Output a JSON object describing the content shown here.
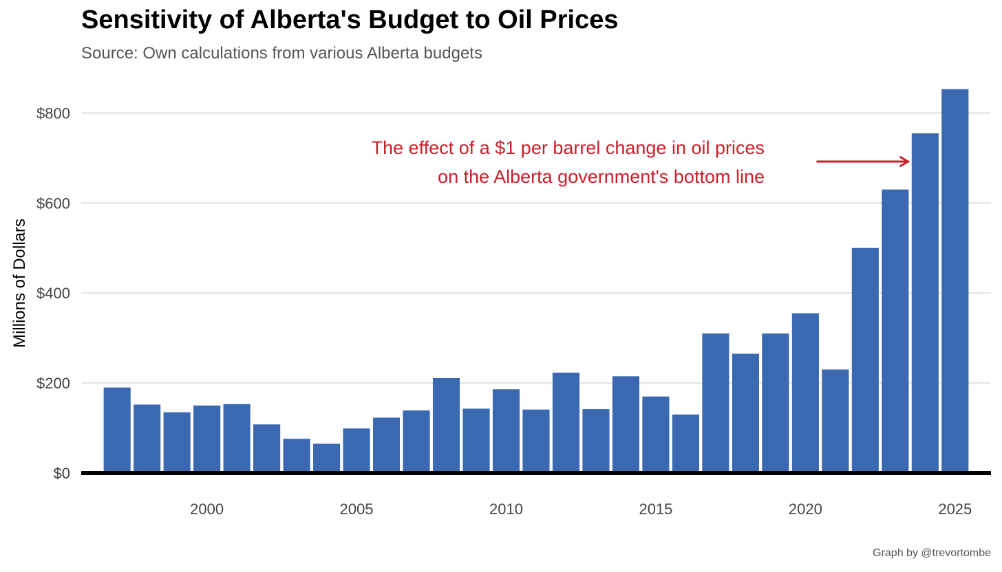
{
  "chart_data": {
    "type": "bar",
    "title": "Sensitivity of Alberta's Budget to Oil Prices",
    "subtitle": "Source: Own calculations from various Alberta budgets",
    "ylabel": "Millions of Dollars",
    "xlabel": "",
    "ylim": [
      0,
      880
    ],
    "yticks": [
      0,
      200,
      400,
      600,
      800
    ],
    "ytick_labels": [
      "$0",
      "$200",
      "$400",
      "$600",
      "$800"
    ],
    "xticks": [
      2000,
      2005,
      2010,
      2015,
      2020,
      2025
    ],
    "xtick_labels": [
      "2000",
      "2005",
      "2010",
      "2015",
      "2020",
      "2025"
    ],
    "xlim": [
      1995.8,
      2026.2
    ],
    "grid": "horizontal",
    "bar_color": "#3a69b1",
    "annotation": {
      "lines": [
        "The effect of a $1 per barrel change in oil prices",
        "on the Alberta government's bottom line"
      ],
      "color": "#c8202a",
      "arrow_from": [
        2020,
        700
      ],
      "arrow_to": [
        2023.2,
        700
      ]
    },
    "categories": [
      1997,
      1998,
      1999,
      2000,
      2001,
      2002,
      2003,
      2004,
      2005,
      2006,
      2007,
      2008,
      2009,
      2010,
      2011,
      2012,
      2013,
      2014,
      2015,
      2016,
      2017,
      2018,
      2019,
      2020,
      2021,
      2022,
      2023,
      2024,
      2025
    ],
    "values": [
      190,
      152,
      135,
      150,
      153,
      108,
      76,
      65,
      99,
      123,
      139,
      211,
      143,
      186,
      141,
      223,
      142,
      215,
      170,
      130,
      310,
      265,
      310,
      355,
      230,
      500,
      630,
      755,
      853
    ]
  },
  "credit": "Graph by @trevortombe"
}
